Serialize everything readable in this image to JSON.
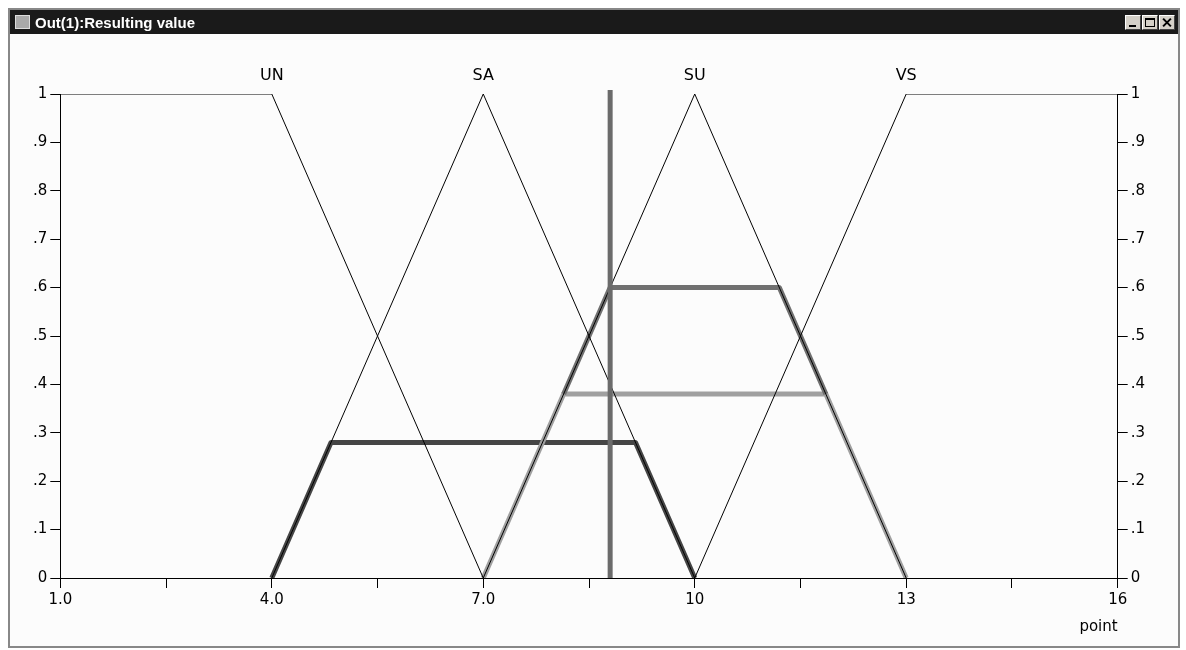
{
  "chart_data": {
    "type": "line",
    "title": "Out(1):Resulting value",
    "xlabel": "point",
    "xlim": [
      1,
      16
    ],
    "xticks": [
      {
        "value": 1,
        "label": "1.0"
      },
      {
        "value": 2.5,
        "label": null
      },
      {
        "value": 4,
        "label": "4.0"
      },
      {
        "value": 5.5,
        "label": null
      },
      {
        "value": 7,
        "label": "7.0"
      },
      {
        "value": 8.5,
        "label": null
      },
      10,
      {
        "value": 11.5,
        "label": null
      },
      13,
      {
        "value": 14.5,
        "label": null
      },
      16
    ],
    "ylim": [
      0,
      1
    ],
    "yticks": [
      0,
      {
        "value": 0.1,
        "label": ".1"
      },
      {
        "value": 0.2,
        "label": ".2"
      },
      {
        "value": 0.3,
        "label": ".3"
      },
      {
        "value": 0.4,
        "label": ".4"
      },
      {
        "value": 0.5,
        "label": ".5"
      },
      {
        "value": 0.6,
        "label": ".6"
      },
      {
        "value": 0.7,
        "label": ".7"
      },
      {
        "value": 0.8,
        "label": ".8"
      },
      {
        "value": 0.9,
        "label": ".9"
      },
      1
    ],
    "y2lim": [
      0,
      1
    ],
    "y2ticks": [
      0,
      {
        "value": 0.1,
        "label": ".1"
      },
      {
        "value": 0.2,
        "label": ".2"
      },
      {
        "value": 0.3,
        "label": ".3"
      },
      {
        "value": 0.4,
        "label": ".4"
      },
      {
        "value": 0.5,
        "label": ".5"
      },
      {
        "value": 0.6,
        "label": ".6"
      },
      {
        "value": 0.7,
        "label": ".7"
      },
      {
        "value": 0.8,
        "label": ".8"
      },
      {
        "value": 0.9,
        "label": ".9"
      },
      1
    ],
    "grid": false,
    "legend": false,
    "marker": "none",
    "line_style": "solid",
    "series": [
      {
        "name": "UN",
        "color": "#000000",
        "x": [
          1,
          4,
          7
        ],
        "values": [
          1,
          1,
          0
        ]
      },
      {
        "name": "SA",
        "color": "#000000",
        "x": [
          4,
          7,
          10
        ],
        "values": [
          0,
          1,
          0
        ]
      },
      {
        "name": "SU",
        "color": "#000000",
        "x": [
          7,
          10,
          13
        ],
        "values": [
          0,
          1,
          0
        ]
      },
      {
        "name": "VS",
        "color": "#000000",
        "x": [
          10,
          13,
          16
        ],
        "values": [
          0,
          1,
          1
        ]
      },
      {
        "color": "#707070",
        "x": [
          8.14,
          8.8,
          11.2,
          11.86
        ],
        "values": [
          0.38,
          0.6,
          0.6,
          0.38
        ]
      },
      {
        "color": "#a0a0a0",
        "x": [
          7,
          8.14,
          11.86,
          13
        ],
        "values": [
          0,
          0.38,
          0.38,
          0
        ]
      },
      {
        "color": "#454545",
        "x": [
          4,
          4.84,
          9.16,
          10
        ],
        "values": [
          0,
          0.28,
          0.28,
          0
        ]
      }
    ],
    "ref_lines": [
      {
        "axis": "x",
        "value": 8.8,
        "color": "#6b6b6b"
      }
    ]
  }
}
